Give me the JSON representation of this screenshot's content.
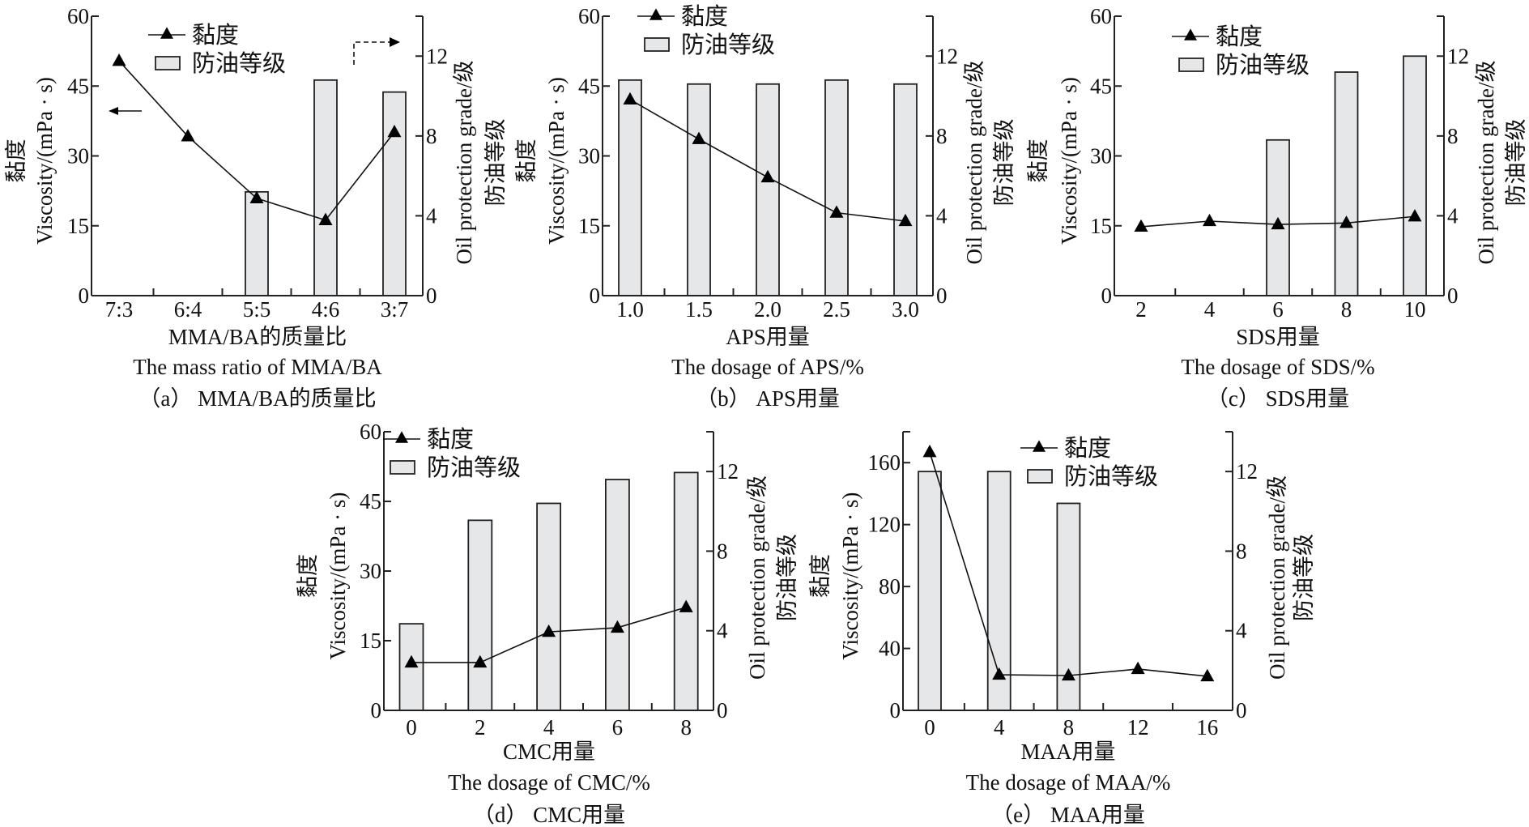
{
  "legend": {
    "line_label": "黏度",
    "bar_label": "防油等级"
  },
  "colors": {
    "bar_fill": "#e6e7e9",
    "line": "#000000"
  },
  "chart_data": [
    {
      "id": "a",
      "type": "bar+line",
      "caption": "（a） MMA/BA的质量比",
      "xlabel_cn": "MMA/BA的质量比",
      "xlabel_en": "The mass ratio of MMA/BA",
      "ylabel_cn": "黏度",
      "ylabel_en": "Viscosity/(mPa · s)",
      "y2label_en": "Oil protection grade/级",
      "y2label_cn": "防油等级",
      "categories": [
        "7:3",
        "6:4",
        "5:5",
        "4:6",
        "3:7"
      ],
      "yticks": [
        "0",
        "15",
        "30",
        "45",
        "60"
      ],
      "ylim": [
        0,
        60
      ],
      "y2ticks": [
        "0",
        "4",
        "8",
        "12"
      ],
      "y2lim": [
        0,
        14
      ],
      "series": [
        {
          "name": "黏度",
          "type": "line",
          "axis": "left",
          "values": [
            50.4,
            34.2,
            20.9,
            16.2,
            35.1
          ]
        },
        {
          "name": "防油等级",
          "type": "bar",
          "axis": "right",
          "values": [
            null,
            null,
            5.2,
            10.8,
            10.2
          ]
        }
      ],
      "annotations": [
        "left-arrow: viscosity uses left axis",
        "dashed right-arrow: grade uses right axis"
      ],
      "legend_position": "top-left"
    },
    {
      "id": "b",
      "type": "bar+line",
      "caption": "（b） APS用量",
      "xlabel_cn": "APS用量",
      "xlabel_en": "The dosage of APS/%",
      "ylabel_cn": "黏度",
      "ylabel_en": "Viscosity/(mPa · s)",
      "y2label_en": "Oil protection grade/级",
      "y2label_cn": "防油等级",
      "categories": [
        "1.0",
        "1.5",
        "2.0",
        "2.5",
        "3.0"
      ],
      "yticks": [
        "0",
        "15",
        "30",
        "45",
        "60"
      ],
      "ylim": [
        0,
        60
      ],
      "y2ticks": [
        "0",
        "4",
        "8",
        "12"
      ],
      "y2lim": [
        0,
        14
      ],
      "series": [
        {
          "name": "黏度",
          "type": "line",
          "axis": "left",
          "values": [
            42.1,
            33.6,
            25.4,
            17.8,
            16.0
          ]
        },
        {
          "name": "防油等级",
          "type": "bar",
          "axis": "right",
          "values": [
            10.8,
            10.6,
            10.6,
            10.8,
            10.6
          ]
        }
      ],
      "legend_position": "top-left"
    },
    {
      "id": "c",
      "type": "bar+line",
      "caption": "（c） SDS用量",
      "xlabel_cn": "SDS用量",
      "xlabel_en": "The dosage of SDS/%",
      "ylabel_cn": "黏度",
      "ylabel_en": "Viscosity/(mPa · s)",
      "y2label_en": "Oil protection grade/级",
      "y2label_cn": "防油等级",
      "categories": [
        "2",
        "4",
        "6",
        "8",
        "10"
      ],
      "yticks": [
        "0",
        "15",
        "30",
        "45",
        "60"
      ],
      "ylim": [
        0,
        60
      ],
      "y2ticks": [
        "0",
        "4",
        "8",
        "12"
      ],
      "y2lim": [
        0,
        14
      ],
      "series": [
        {
          "name": "黏度",
          "type": "line",
          "axis": "left",
          "values": [
            14.8,
            16.0,
            15.3,
            15.6,
            17.0
          ]
        },
        {
          "name": "防油等级",
          "type": "bar",
          "axis": "right",
          "values": [
            null,
            null,
            7.8,
            11.2,
            12.0
          ]
        }
      ],
      "legend_position": "top-left"
    },
    {
      "id": "d",
      "type": "bar+line",
      "caption": "（d） CMC用量",
      "xlabel_cn": "CMC用量",
      "xlabel_en": "The dosage of CMC/%",
      "ylabel_cn": "黏度",
      "ylabel_en": "Viscosity/(mPa · s)",
      "y2label_en": "Oil protection grade/级",
      "y2label_cn": "防油等级",
      "categories": [
        "0",
        "2",
        "4",
        "6",
        "8"
      ],
      "yticks": [
        "0",
        "15",
        "30",
        "45",
        "60"
      ],
      "ylim": [
        0,
        60
      ],
      "y2ticks": [
        "0",
        "4",
        "8",
        "12"
      ],
      "y2lim": [
        0,
        14
      ],
      "series": [
        {
          "name": "黏度",
          "type": "line",
          "axis": "left",
          "values": [
            10.3,
            10.3,
            16.9,
            17.8,
            22.2
          ]
        },
        {
          "name": "防油等级",
          "type": "bar",
          "axis": "right",
          "values": [
            4.35,
            9.55,
            10.4,
            11.6,
            11.95
          ]
        }
      ],
      "legend_position": "top-left"
    },
    {
      "id": "e",
      "type": "bar+line",
      "caption": "（e） MAA用量",
      "xlabel_cn": "MAA用量",
      "xlabel_en": "The dosage of MAA/%",
      "ylabel_cn": "黏度",
      "ylabel_en": "Viscosity/(mPa · s)",
      "y2label_en": "Oil protection grade/级",
      "y2label_cn": "防油等级",
      "categories": [
        "0",
        "4",
        "8",
        "12",
        "16"
      ],
      "yticks": [
        "0",
        "40",
        "80",
        "120",
        "160"
      ],
      "ylim": [
        0,
        180
      ],
      "y2ticks": [
        "0",
        "4",
        "8",
        "12"
      ],
      "y2lim": [
        0,
        14
      ],
      "series": [
        {
          "name": "黏度",
          "type": "line",
          "axis": "left",
          "values": [
            166.8,
            23.0,
            22.5,
            26.7,
            22.0
          ]
        },
        {
          "name": "防油等级",
          "type": "bar",
          "axis": "right",
          "values": [
            12.0,
            12.0,
            10.4,
            null,
            null
          ]
        }
      ],
      "legend_position": "top-right"
    }
  ]
}
